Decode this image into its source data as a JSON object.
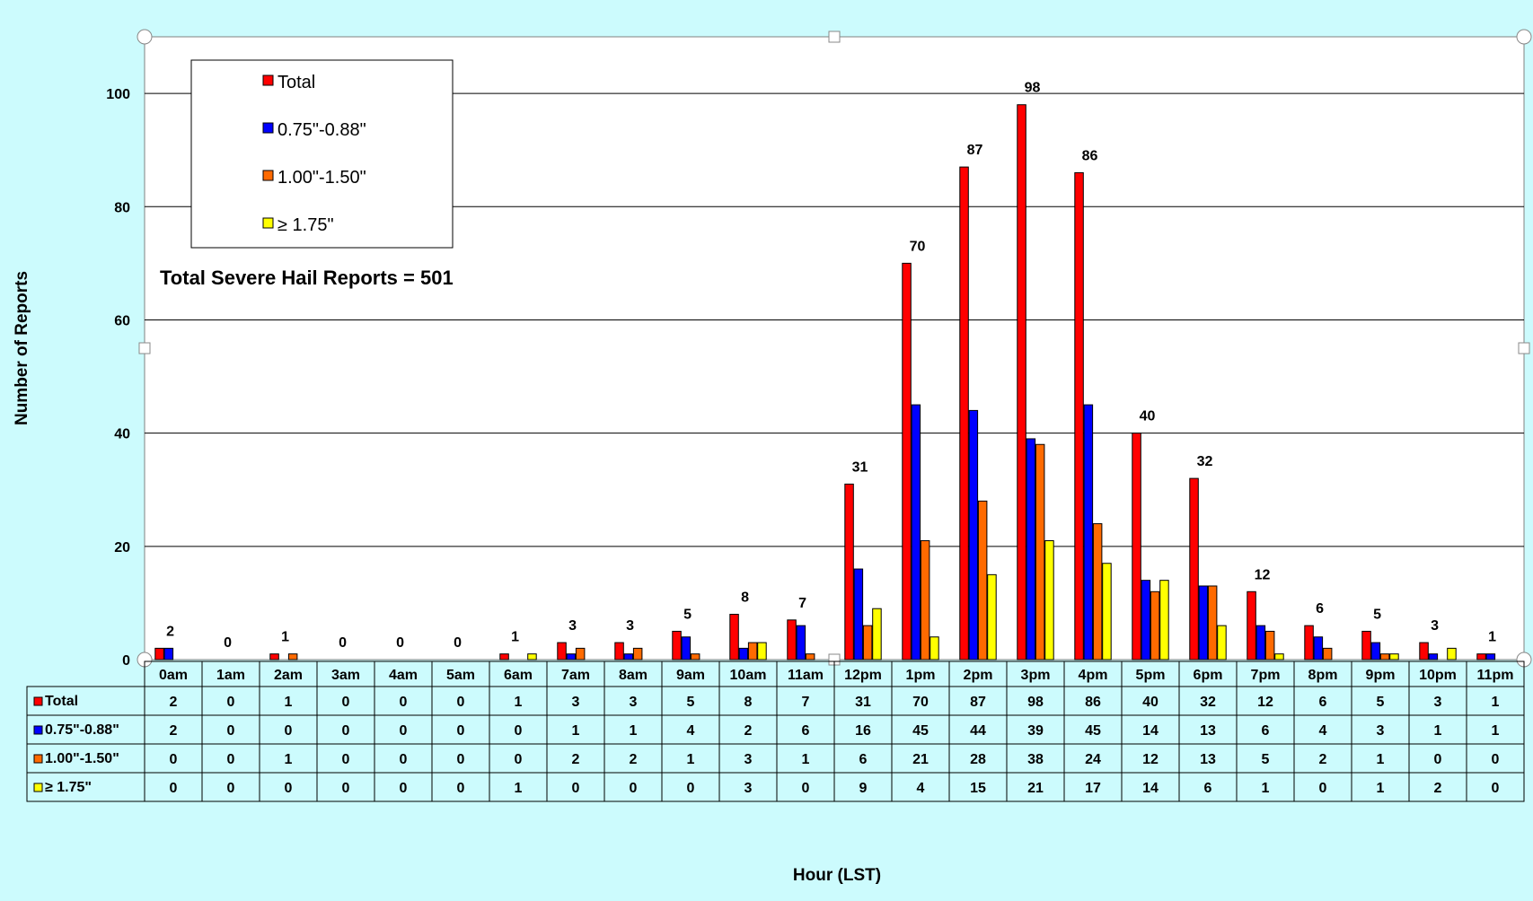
{
  "chart_data": {
    "type": "bar",
    "ylabel": "Number of Reports",
    "xlabel": "Hour (LST)",
    "annotation": "Total Severe Hail Reports = 501",
    "ylim": [
      0,
      110
    ],
    "yticks": [
      0,
      20,
      40,
      60,
      80,
      100
    ],
    "grid": true,
    "legend_position": "top-left",
    "categories": [
      "0am",
      "1am",
      "2am",
      "3am",
      "4am",
      "5am",
      "6am",
      "7am",
      "8am",
      "9am",
      "10am",
      "11am",
      "12pm",
      "1pm",
      "2pm",
      "3pm",
      "4pm",
      "5pm",
      "6pm",
      "7pm",
      "8pm",
      "9pm",
      "10pm",
      "11pm"
    ],
    "series": [
      {
        "name": "Total",
        "table_label": "Total",
        "color": "#ff0000",
        "values": [
          2,
          0,
          1,
          0,
          0,
          0,
          1,
          3,
          3,
          5,
          8,
          7,
          31,
          70,
          87,
          98,
          86,
          40,
          32,
          12,
          6,
          5,
          3,
          1
        ]
      },
      {
        "name": "0.75\"-0.88\"",
        "table_label": "0.75\"-0.88\"",
        "color": "#0000ff",
        "values": [
          2,
          0,
          0,
          0,
          0,
          0,
          0,
          1,
          1,
          4,
          2,
          6,
          16,
          45,
          44,
          39,
          45,
          14,
          13,
          6,
          4,
          3,
          1,
          1
        ]
      },
      {
        "name": "1.00\"-1.50\"",
        "table_label": "1.00\"-1.50\"",
        "color": "#ff6a00",
        "values": [
          0,
          0,
          1,
          0,
          0,
          0,
          0,
          2,
          2,
          1,
          3,
          1,
          6,
          21,
          28,
          38,
          24,
          12,
          13,
          5,
          2,
          1,
          0,
          0
        ]
      },
      {
        "name": "≥ 1.75\"",
        "table_label": "≥ 1.75\"",
        "color": "#ffff00",
        "values": [
          0,
          0,
          0,
          0,
          0,
          0,
          1,
          0,
          0,
          0,
          3,
          0,
          9,
          4,
          15,
          21,
          17,
          14,
          6,
          1,
          0,
          1,
          2,
          0
        ]
      }
    ],
    "data_labels_series": "Total"
  },
  "colors": {
    "background": "#ccfbfd",
    "plot_area": "#ffffff"
  }
}
